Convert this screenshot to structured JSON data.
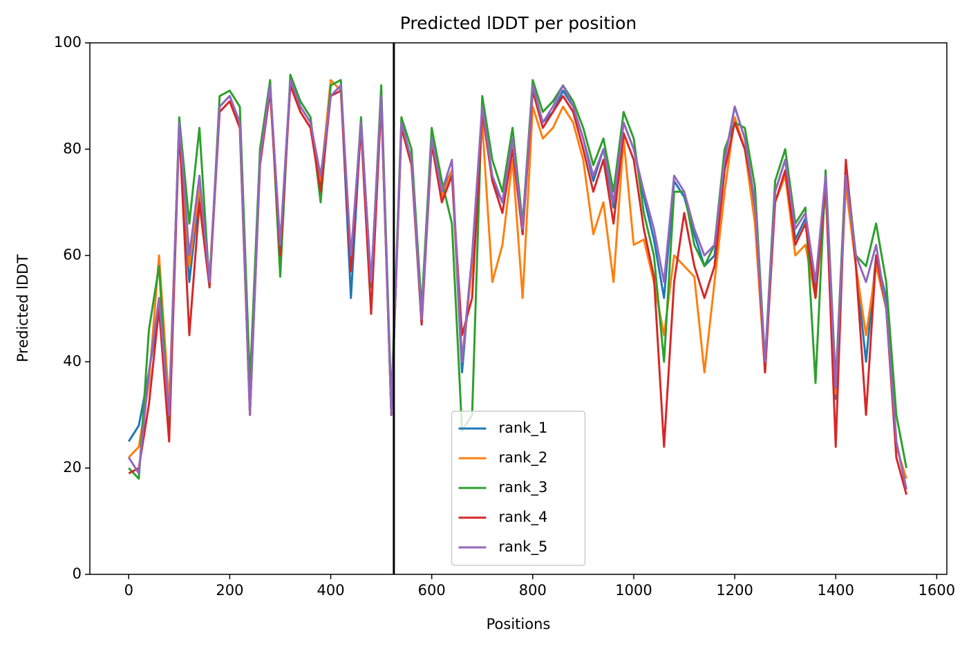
{
  "chart_data": {
    "type": "line",
    "title": "Predicted lDDT per position",
    "xlabel": "Positions",
    "ylabel": "Predicted lDDT",
    "x": [
      0,
      20,
      40,
      60,
      80,
      100,
      120,
      140,
      160,
      180,
      200,
      220,
      240,
      260,
      280,
      300,
      320,
      340,
      360,
      380,
      400,
      420,
      440,
      460,
      480,
      500,
      520,
      540,
      560,
      580,
      600,
      620,
      640,
      660,
      680,
      700,
      720,
      740,
      760,
      780,
      800,
      820,
      840,
      860,
      880,
      900,
      920,
      940,
      960,
      980,
      1000,
      1020,
      1040,
      1060,
      1080,
      1100,
      1120,
      1140,
      1160,
      1180,
      1200,
      1220,
      1240,
      1260,
      1280,
      1300,
      1320,
      1340,
      1360,
      1380,
      1400,
      1420,
      1440,
      1460,
      1480,
      1500,
      1520,
      1540
    ],
    "series": [
      {
        "name": "rank_1",
        "color": "#1f77b4",
        "values": [
          25,
          28,
          38,
          50,
          30,
          85,
          55,
          72,
          55,
          88,
          90,
          85,
          31,
          78,
          92,
          62,
          93,
          88,
          85,
          73,
          90,
          92,
          52,
          85,
          55,
          90,
          30,
          85,
          78,
          47,
          82,
          72,
          76,
          38,
          60,
          88,
          74,
          70,
          82,
          64,
          92,
          85,
          87,
          91,
          88,
          82,
          74,
          80,
          69,
          85,
          80,
          71,
          63,
          52,
          74,
          71,
          64,
          58,
          60,
          78,
          88,
          82,
          69,
          38,
          72,
          78,
          63,
          67,
          53,
          75,
          33,
          75,
          58,
          40,
          60,
          52,
          25,
          16
        ]
      },
      {
        "name": "rank_2",
        "color": "#ff7f0e",
        "values": [
          22,
          24,
          36,
          60,
          32,
          84,
          58,
          73,
          56,
          87,
          89,
          84,
          30,
          78,
          91,
          61,
          92,
          87,
          84,
          74,
          93,
          91,
          58,
          84,
          54,
          89,
          31,
          84,
          77,
          48,
          81,
          71,
          76,
          40,
          58,
          85,
          55,
          62,
          78,
          52,
          88,
          82,
          84,
          88,
          85,
          78,
          64,
          70,
          55,
          82,
          62,
          63,
          55,
          45,
          60,
          58,
          56,
          38,
          55,
          72,
          86,
          80,
          66,
          38,
          70,
          75,
          60,
          62,
          52,
          72,
          34,
          73,
          58,
          45,
          58,
          50,
          24,
          18
        ]
      },
      {
        "name": "rank_3",
        "color": "#2ca02c",
        "values": [
          20,
          18,
          46,
          58,
          28,
          86,
          66,
          84,
          54,
          90,
          91,
          88,
          36,
          80,
          93,
          56,
          94,
          89,
          86,
          70,
          92,
          93,
          58,
          86,
          54,
          92,
          32,
          86,
          80,
          50,
          84,
          74,
          66,
          27,
          30,
          90,
          78,
          72,
          84,
          66,
          93,
          87,
          89,
          92,
          89,
          84,
          77,
          82,
          72,
          87,
          82,
          68,
          60,
          40,
          72,
          72,
          62,
          58,
          62,
          80,
          85,
          84,
          73,
          40,
          74,
          80,
          66,
          69,
          36,
          76,
          36,
          77,
          60,
          58,
          66,
          55,
          30,
          20
        ]
      },
      {
        "name": "rank_4",
        "color": "#d62728",
        "values": [
          19,
          20,
          32,
          50,
          25,
          84,
          45,
          70,
          54,
          87,
          89,
          84,
          30,
          77,
          91,
          60,
          92,
          87,
          84,
          72,
          90,
          91,
          57,
          84,
          49,
          89,
          30,
          84,
          77,
          47,
          81,
          70,
          75,
          45,
          52,
          87,
          74,
          68,
          80,
          64,
          91,
          84,
          87,
          90,
          87,
          80,
          72,
          78,
          66,
          83,
          78,
          65,
          56,
          24,
          55,
          68,
          58,
          52,
          58,
          76,
          85,
          80,
          70,
          38,
          70,
          76,
          62,
          66,
          52,
          74,
          24,
          78,
          58,
          30,
          60,
          50,
          22,
          15
        ]
      },
      {
        "name": "rank_5",
        "color": "#9467bd",
        "values": [
          22,
          19,
          38,
          52,
          30,
          85,
          60,
          75,
          55,
          88,
          90,
          85,
          30,
          78,
          92,
          62,
          93,
          88,
          85,
          75,
          90,
          92,
          60,
          85,
          55,
          90,
          30,
          85,
          78,
          48,
          82,
          72,
          78,
          40,
          60,
          88,
          75,
          70,
          82,
          65,
          92,
          85,
          88,
          92,
          88,
          82,
          75,
          80,
          70,
          85,
          80,
          72,
          65,
          55,
          75,
          72,
          65,
          60,
          62,
          78,
          88,
          82,
          70,
          40,
          72,
          78,
          65,
          68,
          55,
          75,
          35,
          75,
          60,
          55,
          62,
          50,
          25,
          16
        ]
      }
    ],
    "vline": 525,
    "xlim": [
      -77,
      1620
    ],
    "xticks": [
      0,
      200,
      400,
      600,
      800,
      1000,
      1200,
      1400,
      1600
    ],
    "ylim": [
      0,
      100
    ],
    "yticks": [
      0,
      20,
      40,
      60,
      80,
      100
    ],
    "legend": "lower center"
  }
}
